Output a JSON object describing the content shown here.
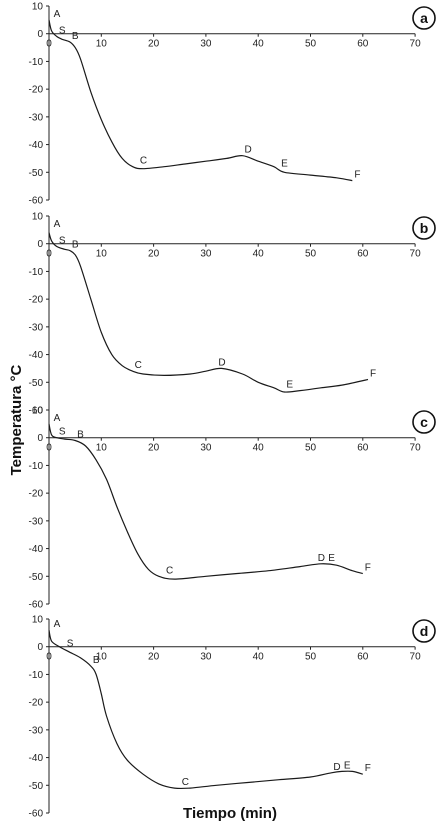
{
  "figure": {
    "ylabel": "Temperatura °C",
    "xlabel": "Tiempo (min)"
  },
  "chart_data": [
    {
      "type": "line",
      "panel_label": "a",
      "xlim": [
        0,
        70
      ],
      "ylim": [
        -60,
        10
      ],
      "x_ticks": [
        0,
        10,
        20,
        30,
        40,
        50,
        60,
        70
      ],
      "y_ticks": [
        10,
        0,
        -10,
        -20,
        -30,
        -40,
        -50,
        -60
      ],
      "series": [
        {
          "x": [
            0,
            0.5,
            1.5,
            2.5,
            4,
            5,
            6,
            8,
            10,
            12,
            14,
            16,
            18,
            22,
            26,
            30,
            34,
            37,
            40,
            43,
            45,
            50,
            55,
            58
          ],
          "y": [
            5,
            1,
            -1,
            -2,
            -3,
            -5,
            -9,
            -21,
            -31,
            -39,
            -45,
            -48,
            -48.7,
            -48,
            -47,
            -46,
            -45,
            -44,
            -46,
            -48,
            -50,
            -51,
            -52,
            -53
          ]
        }
      ],
      "annotations": [
        {
          "text": "A",
          "x": 0.5,
          "y": 5
        },
        {
          "text": "S",
          "x": 1.5,
          "y": -1
        },
        {
          "text": "B",
          "x": 4,
          "y": -3
        },
        {
          "text": "C",
          "x": 17,
          "y": -48
        },
        {
          "text": "D",
          "x": 37,
          "y": -44
        },
        {
          "text": "E",
          "x": 44,
          "y": -49
        },
        {
          "text": "F",
          "x": 58,
          "y": -53
        }
      ]
    },
    {
      "type": "line",
      "panel_label": "b",
      "xlim": [
        0,
        70
      ],
      "ylim": [
        -60,
        10
      ],
      "x_ticks": [
        0,
        10,
        20,
        30,
        40,
        50,
        60,
        70
      ],
      "y_ticks": [
        10,
        0,
        -10,
        -20,
        -30,
        -40,
        -50,
        -60
      ],
      "series": [
        {
          "x": [
            0,
            0.5,
            1.5,
            3,
            4,
            5,
            6,
            8,
            10,
            12,
            14,
            16,
            18,
            22,
            27,
            30,
            33,
            37,
            40,
            43,
            45,
            48,
            52,
            56,
            61
          ],
          "y": [
            4,
            1,
            -1,
            -2,
            -2.5,
            -4,
            -8,
            -20,
            -32,
            -40,
            -44,
            -46,
            -47,
            -47.5,
            -47,
            -46,
            -45,
            -47,
            -50,
            -52,
            -53.5,
            -53,
            -52,
            -51,
            -49
          ]
        }
      ],
      "annotations": [
        {
          "text": "A",
          "x": 0.5,
          "y": 5
        },
        {
          "text": "S",
          "x": 1.5,
          "y": -1
        },
        {
          "text": "B",
          "x": 4,
          "y": -2.5
        },
        {
          "text": "C",
          "x": 16,
          "y": -46
        },
        {
          "text": "D",
          "x": 32,
          "y": -45
        },
        {
          "text": "E",
          "x": 45,
          "y": -53
        },
        {
          "text": "F",
          "x": 61,
          "y": -49
        }
      ]
    },
    {
      "type": "line",
      "panel_label": "c",
      "xlim": [
        0,
        70
      ],
      "ylim": [
        -60,
        10
      ],
      "x_ticks": [
        0,
        10,
        20,
        30,
        40,
        50,
        60,
        70
      ],
      "y_ticks": [
        10,
        0,
        -10,
        -20,
        -30,
        -40,
        -50,
        -60
      ],
      "series": [
        {
          "x": [
            0,
            0.5,
            1.5,
            3,
            5,
            7,
            9,
            11,
            13,
            15,
            17,
            19,
            21,
            24,
            30,
            36,
            42,
            48,
            52,
            55,
            58,
            60
          ],
          "y": [
            5,
            1,
            0,
            -0.5,
            -1,
            -3,
            -8,
            -15,
            -25,
            -34,
            -42,
            -47.5,
            -50,
            -51,
            -50,
            -49,
            -48,
            -46.5,
            -45.5,
            -46,
            -48,
            -49
          ]
        }
      ],
      "annotations": [
        {
          "text": "A",
          "x": 0.5,
          "y": 5
        },
        {
          "text": "S",
          "x": 1.5,
          "y": 0
        },
        {
          "text": "B",
          "x": 5,
          "y": -1
        },
        {
          "text": "C",
          "x": 22,
          "y": -50
        },
        {
          "text": "D",
          "x": 51,
          "y": -45.5
        },
        {
          "text": "E",
          "x": 53,
          "y": -45.5
        },
        {
          "text": "F",
          "x": 60,
          "y": -49
        }
      ]
    },
    {
      "type": "line",
      "panel_label": "d",
      "xlim": [
        0,
        70
      ],
      "ylim": [
        -60,
        10
      ],
      "x_ticks": [
        0,
        10,
        20,
        30,
        40,
        50,
        60,
        70
      ],
      "y_ticks": [
        10,
        0,
        -10,
        -20,
        -30,
        -40,
        -50,
        -60
      ],
      "series": [
        {
          "x": [
            0,
            0.5,
            2,
            4,
            6,
            8,
            9,
            10,
            11,
            13,
            15,
            18,
            21,
            24,
            27,
            32,
            38,
            44,
            50,
            54,
            56,
            58,
            60
          ],
          "y": [
            6,
            2,
            0,
            -2,
            -4,
            -7,
            -10,
            -17,
            -25,
            -35,
            -41,
            -46,
            -49.5,
            -51,
            -51,
            -50,
            -49,
            -48,
            -47,
            -45.5,
            -45,
            -45,
            -46
          ]
        }
      ],
      "annotations": [
        {
          "text": "A",
          "x": 0.5,
          "y": 6
        },
        {
          "text": "S",
          "x": 3,
          "y": -1
        },
        {
          "text": "B",
          "x": 8,
          "y": -7
        },
        {
          "text": "C",
          "x": 25,
          "y": -51
        },
        {
          "text": "D",
          "x": 54,
          "y": -45.5
        },
        {
          "text": "E",
          "x": 56,
          "y": -45
        },
        {
          "text": "F",
          "x": 60,
          "y": -46
        }
      ]
    }
  ]
}
